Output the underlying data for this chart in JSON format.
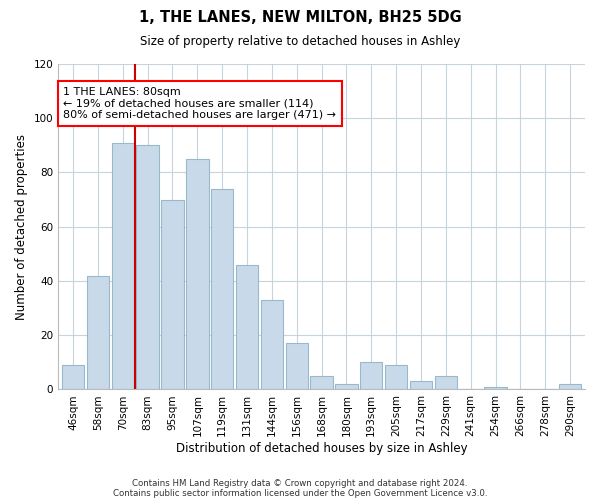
{
  "title": "1, THE LANES, NEW MILTON, BH25 5DG",
  "subtitle": "Size of property relative to detached houses in Ashley",
  "xlabel": "Distribution of detached houses by size in Ashley",
  "ylabel": "Number of detached properties",
  "footnote1": "Contains HM Land Registry data © Crown copyright and database right 2024.",
  "footnote2": "Contains public sector information licensed under the Open Government Licence v3.0.",
  "bar_labels": [
    "46sqm",
    "58sqm",
    "70sqm",
    "83sqm",
    "95sqm",
    "107sqm",
    "119sqm",
    "131sqm",
    "144sqm",
    "156sqm",
    "168sqm",
    "180sqm",
    "193sqm",
    "205sqm",
    "217sqm",
    "229sqm",
    "241sqm",
    "254sqm",
    "266sqm",
    "278sqm",
    "290sqm"
  ],
  "bar_values": [
    9,
    42,
    91,
    90,
    70,
    85,
    74,
    46,
    33,
    17,
    5,
    2,
    10,
    9,
    3,
    5,
    0,
    1,
    0,
    0,
    2
  ],
  "bar_color": "#c8daea",
  "bar_edge_color": "#9ab8cc",
  "vline_color": "#cc0000",
  "annotation_text": "1 THE LANES: 80sqm\n← 19% of detached houses are smaller (114)\n80% of semi-detached houses are larger (471) →",
  "ylim": [
    0,
    120
  ],
  "yticks": [
    0,
    20,
    40,
    60,
    80,
    100,
    120
  ],
  "background_color": "#ffffff",
  "grid_color": "#c8d4dc"
}
